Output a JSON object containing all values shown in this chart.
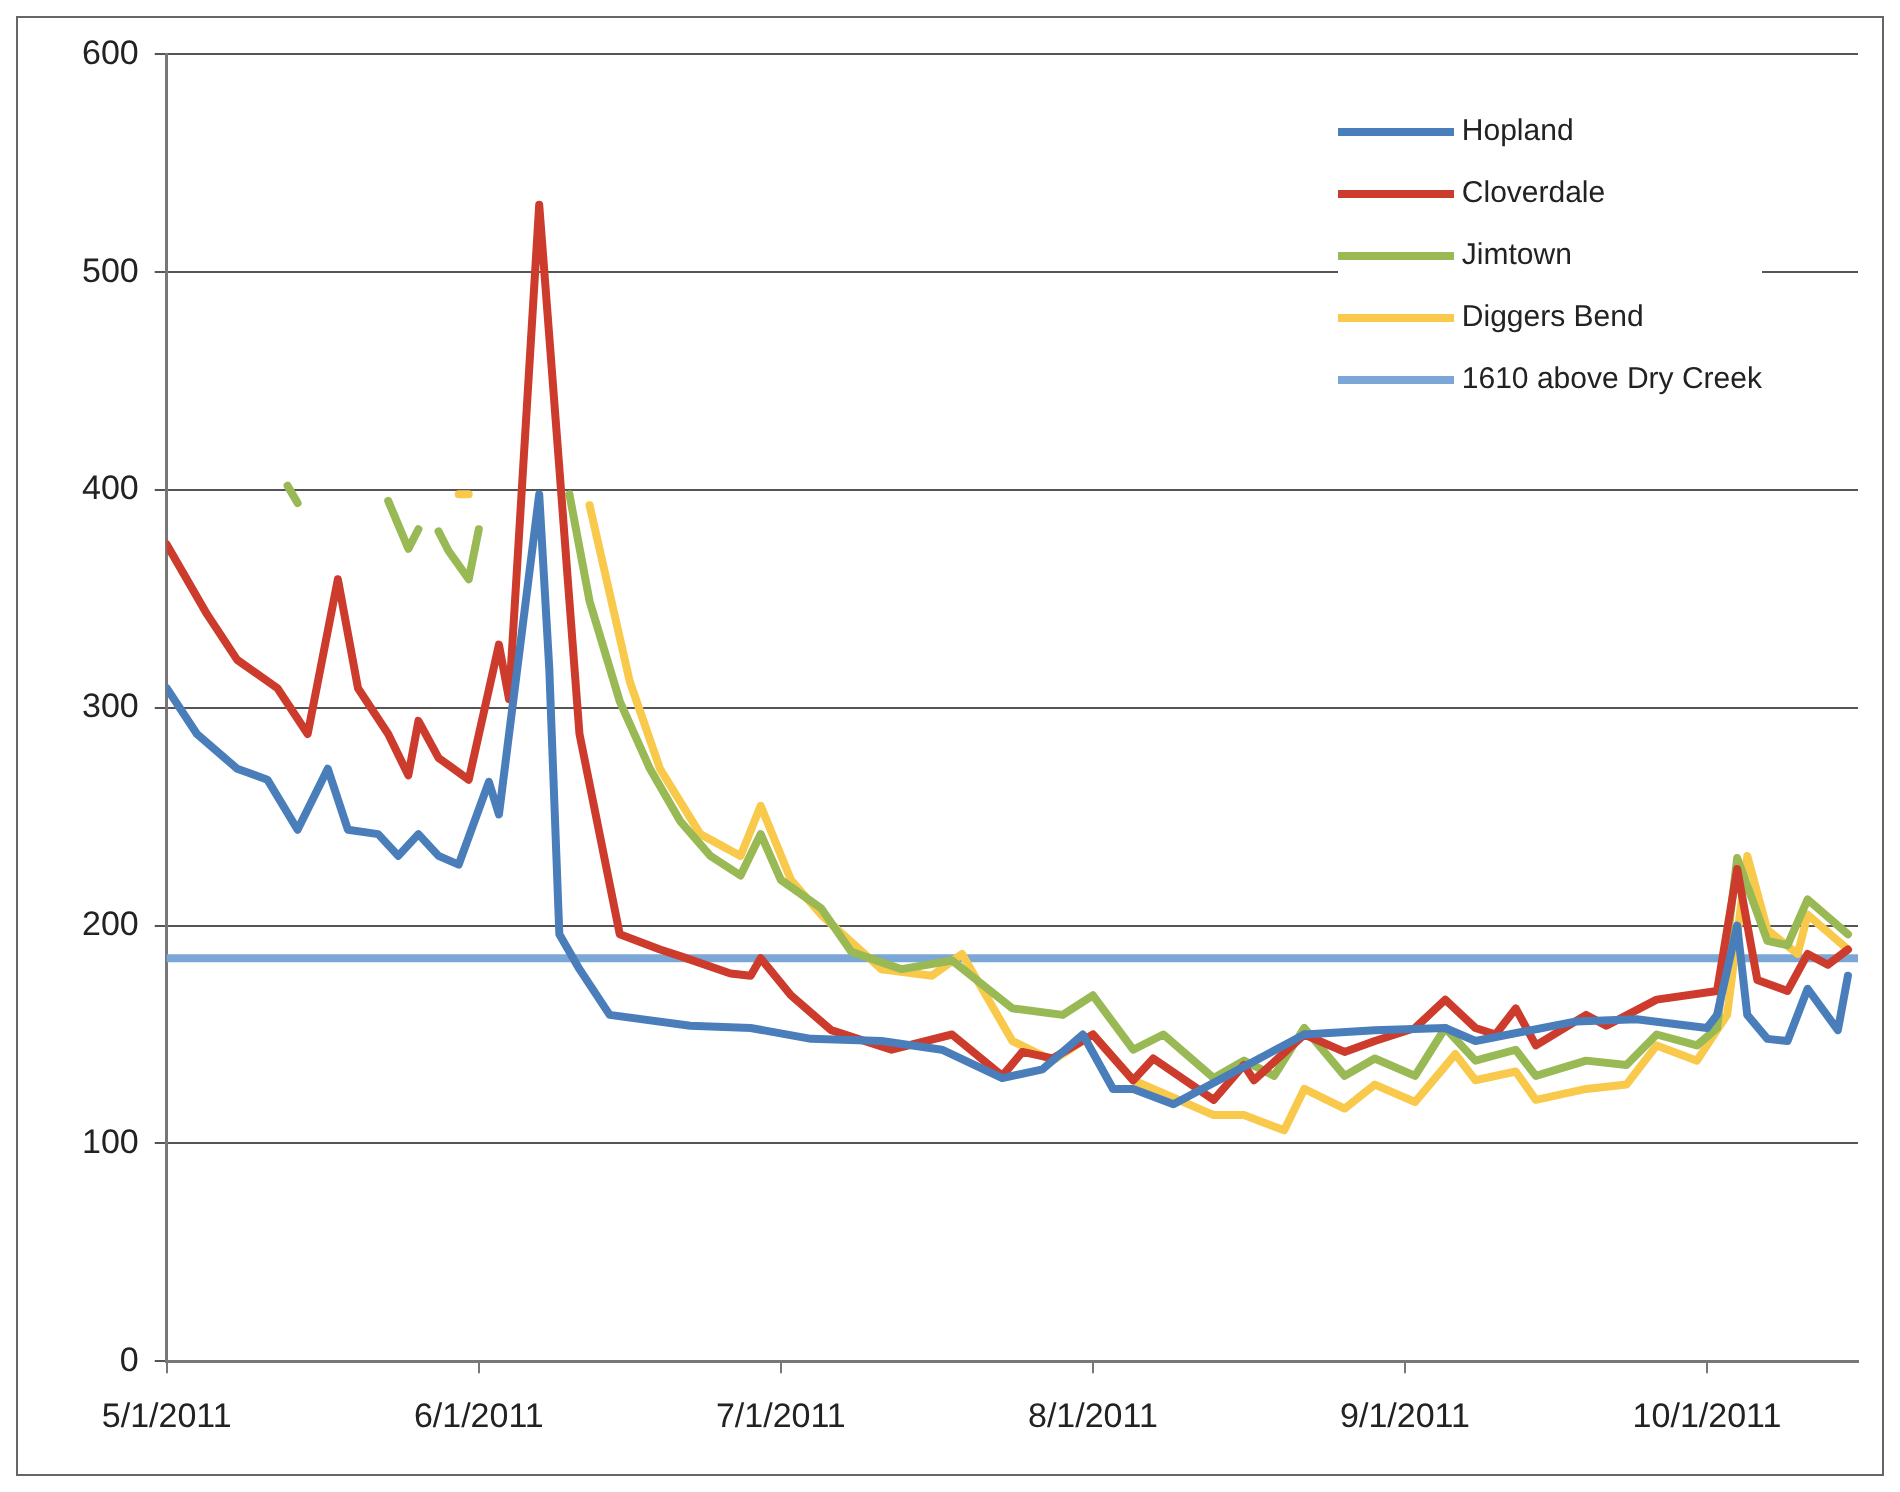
{
  "chart_data": {
    "type": "line",
    "xlim": [
      "2011-05-01",
      "2011-10-16"
    ],
    "xticks": [
      {
        "value": "2011-05-01",
        "label": "5/1/2011"
      },
      {
        "value": "2011-06-01",
        "label": "6/1/2011"
      },
      {
        "value": "2011-07-01",
        "label": "7/1/2011"
      },
      {
        "value": "2011-08-01",
        "label": "8/1/2011"
      },
      {
        "value": "2011-09-01",
        "label": "9/1/2011"
      },
      {
        "value": "2011-10-01",
        "label": "10/1/2011"
      }
    ],
    "ylim": [
      0,
      600
    ],
    "yticks": [
      0,
      100,
      200,
      300,
      400,
      500,
      600
    ],
    "grid": "y",
    "legend": "top right",
    "marker": "none",
    "line_style": "solid",
    "series": [
      {
        "name": "Hopland",
        "color": "#4a7ebb",
        "x": [
          "2011-05-01",
          "2011-05-04",
          "2011-05-08",
          "2011-05-11",
          "2011-05-14",
          "2011-05-17",
          "2011-05-19",
          "2011-05-22",
          "2011-05-24",
          "2011-05-26",
          "2011-05-28",
          "2011-05-30",
          "2011-06-02",
          "2011-06-03",
          "2011-06-07",
          "2011-06-08",
          "2011-06-09",
          "2011-06-11",
          "2011-06-14",
          "2011-06-22",
          "2011-06-28",
          "2011-07-04",
          "2011-07-11",
          "2011-07-17",
          "2011-07-23",
          "2011-07-27",
          "2011-07-31",
          "2011-08-03",
          "2011-08-05",
          "2011-08-09",
          "2011-08-22",
          "2011-08-29",
          "2011-09-05",
          "2011-09-08",
          "2011-09-18",
          "2011-09-24",
          "2011-10-01",
          "2011-10-02",
          "2011-10-04",
          "2011-10-05",
          "2011-10-07",
          "2011-10-09",
          "2011-10-11",
          "2011-10-14",
          "2011-10-15"
        ],
        "values": [
          309,
          288,
          272,
          267,
          244,
          272,
          244,
          242,
          232,
          242,
          232,
          228,
          266,
          251,
          398,
          318,
          196,
          180,
          159,
          154,
          153,
          148,
          147,
          143,
          130,
          134,
          150,
          125,
          125,
          118,
          150,
          152,
          153,
          147,
          156,
          157,
          153,
          159,
          200,
          159,
          148,
          147,
          171,
          152,
          177
        ]
      },
      {
        "name": "Cloverdale",
        "color": "#cc3b2b",
        "x": [
          "2011-05-01",
          "2011-05-05",
          "2011-05-08",
          "2011-05-12",
          "2011-05-15",
          "2011-05-18",
          "2011-05-20",
          "2011-05-23",
          "2011-05-25",
          "2011-05-26",
          "2011-05-28",
          "2011-05-31",
          "2011-06-03",
          "2011-06-04",
          "2011-06-07",
          "2011-06-09",
          "2011-06-11",
          "2011-06-15",
          "2011-06-19",
          "2011-06-21",
          "2011-06-26",
          "2011-06-28",
          "2011-06-29",
          "2011-07-02",
          "2011-07-06",
          "2011-07-12",
          "2011-07-18",
          "2011-07-23",
          "2011-07-25",
          "2011-07-28",
          "2011-08-01",
          "2011-08-05",
          "2011-08-07",
          "2011-08-13",
          "2011-08-16",
          "2011-08-17",
          "2011-08-22",
          "2011-08-26",
          "2011-08-29",
          "2011-09-02",
          "2011-09-05",
          "2011-09-08",
          "2011-09-10",
          "2011-09-12",
          "2011-09-14",
          "2011-09-19",
          "2011-09-21",
          "2011-09-26",
          "2011-10-02",
          "2011-10-04",
          "2011-10-06",
          "2011-10-09",
          "2011-10-11",
          "2011-10-13",
          "2011-10-15"
        ],
        "values": [
          375,
          343,
          322,
          309,
          288,
          359,
          309,
          288,
          269,
          294,
          277,
          267,
          329,
          304,
          531,
          410,
          288,
          196,
          189,
          186,
          178,
          177,
          185,
          168,
          152,
          143,
          150,
          131,
          142,
          139,
          150,
          129,
          139,
          120,
          136,
          129,
          150,
          142,
          147,
          153,
          166,
          153,
          150,
          162,
          145,
          159,
          154,
          166,
          170,
          226,
          175,
          170,
          187,
          182,
          189
        ]
      },
      {
        "name": "Jimtown",
        "color": "#98b954",
        "x": [
          "2011-05-13",
          "2011-05-14",
          "2011-05-18",
          "2011-05-23",
          "2011-05-25",
          "2011-05-26",
          "2011-05-27",
          "2011-05-28",
          "2011-05-29",
          "2011-05-31",
          "2011-06-01",
          "2011-06-05",
          "2011-06-10",
          "2011-06-12",
          "2011-06-15",
          "2011-06-18",
          "2011-06-21",
          "2011-06-24",
          "2011-06-27",
          "2011-06-29",
          "2011-07-01",
          "2011-07-05",
          "2011-07-08",
          "2011-07-13",
          "2011-07-18",
          "2011-07-24",
          "2011-07-29",
          "2011-08-01",
          "2011-08-05",
          "2011-08-08",
          "2011-08-13",
          "2011-08-16",
          "2011-08-19",
          "2011-08-22",
          "2011-08-26",
          "2011-08-29",
          "2011-09-02",
          "2011-09-05",
          "2011-09-08",
          "2011-09-12",
          "2011-09-14",
          "2011-09-19",
          "2011-09-23",
          "2011-09-26",
          "2011-09-30",
          "2011-10-02",
          "2011-10-04",
          "2011-10-07",
          "2011-10-09",
          "2011-10-11",
          "2011-10-15"
        ],
        "values": [
          402,
          394,
          null,
          395,
          373,
          382,
          null,
          381,
          372,
          359,
          382,
          null,
          398,
          349,
          303,
          272,
          248,
          232,
          223,
          242,
          221,
          208,
          188,
          180,
          184,
          162,
          159,
          168,
          143,
          150,
          130,
          138,
          131,
          153,
          131,
          139,
          131,
          153,
          138,
          143,
          131,
          138,
          136,
          150,
          145,
          153,
          231,
          193,
          191,
          212,
          196
        ]
      },
      {
        "name": "Diggers Bend",
        "color": "#f8c94a",
        "x": [
          "2011-05-30",
          "2011-05-31",
          "2011-06-05",
          "2011-06-12",
          "2011-06-16",
          "2011-06-19",
          "2011-06-23",
          "2011-06-27",
          "2011-06-29",
          "2011-07-02",
          "2011-07-05",
          "2011-07-11",
          "2011-07-16",
          "2011-07-19",
          "2011-07-24",
          "2011-07-28",
          "2011-08-01",
          "2011-08-05",
          "2011-08-13",
          "2011-08-16",
          "2011-08-20",
          "2011-08-22",
          "2011-08-26",
          "2011-08-29",
          "2011-09-02",
          "2011-09-06",
          "2011-09-08",
          "2011-09-12",
          "2011-09-14",
          "2011-09-19",
          "2011-09-23",
          "2011-09-26",
          "2011-09-30",
          "2011-10-03",
          "2011-10-05",
          "2011-10-07",
          "2011-10-10",
          "2011-10-11",
          "2011-10-15"
        ],
        "values": [
          398,
          398,
          null,
          393,
          312,
          272,
          242,
          232,
          255,
          221,
          205,
          180,
          177,
          187,
          147,
          138,
          150,
          129,
          113,
          113,
          106,
          125,
          116,
          127,
          119,
          141,
          129,
          133,
          120,
          125,
          127,
          145,
          138,
          159,
          232,
          198,
          187,
          205,
          189
        ]
      },
      {
        "name": "1610 above Dry Creek",
        "color": "#7ba7d7",
        "x": [
          "2011-05-01",
          "2011-10-16"
        ],
        "values": [
          185,
          185
        ]
      }
    ]
  }
}
